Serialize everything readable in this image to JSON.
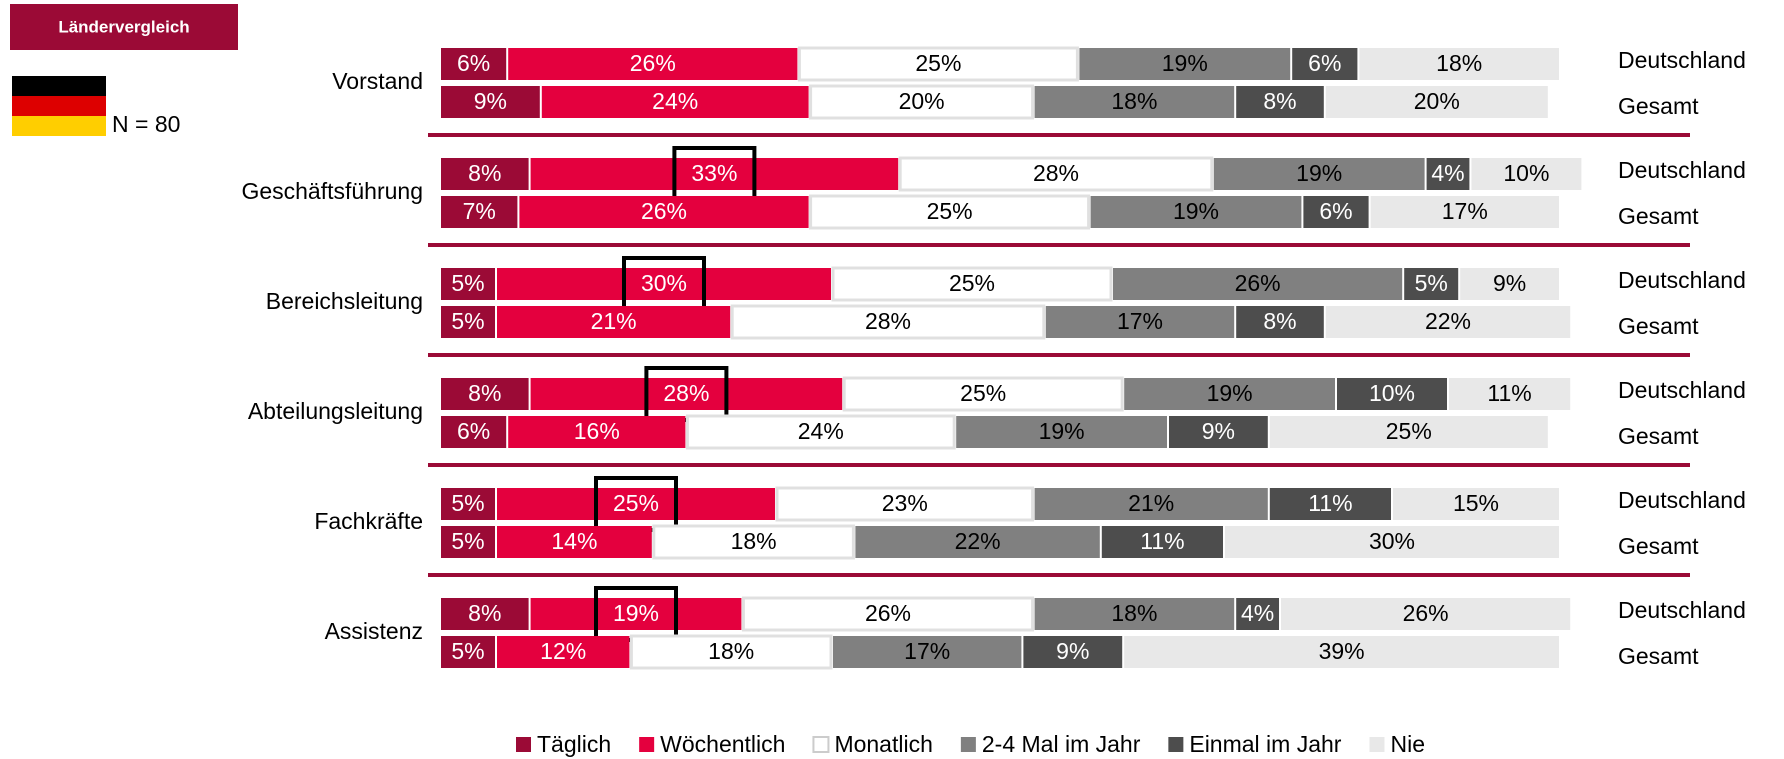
{
  "badge": "Ländervergleich",
  "n_label": "N = 80",
  "chart_data": {
    "type": "stacked-bar",
    "orientation": "horizontal",
    "xlim": [
      0,
      100
    ],
    "series": [
      {
        "name": "Täglich",
        "color": "#9b0a36",
        "label_color": "#ffffff"
      },
      {
        "name": "Wöchentlich",
        "color": "#e4003e",
        "label_color": "#ffffff"
      },
      {
        "name": "Monatlich",
        "color": "#ffffff",
        "label_color": "#000000"
      },
      {
        "name": "2-4 Mal im Jahr",
        "color": "#808080",
        "label_color": "#000000"
      },
      {
        "name": "Einmal im Jahr",
        "color": "#4d4d4d",
        "label_color": "#ffffff"
      },
      {
        "name": "Nie",
        "color": "#e8e8e8",
        "label_color": "#000000"
      }
    ],
    "groups": [
      {
        "name": "Vorstand",
        "rows": [
          {
            "name": "Deutschland",
            "values": [
              6,
              26,
              25,
              19,
              6,
              18
            ],
            "value_labels": [
              "6%",
              "26%",
              "25%",
              "19%",
              "6%",
              "18%"
            ]
          },
          {
            "name": "Gesamt",
            "values": [
              9,
              24,
              20,
              18,
              8,
              20
            ],
            "value_labels": [
              "9%",
              "24%",
              "20%",
              "18%",
              "8%",
              "20%"
            ]
          }
        ]
      },
      {
        "name": "Geschäftsführung",
        "rows": [
          {
            "name": "Deutschland",
            "values": [
              8,
              33,
              28,
              19,
              4,
              10
            ],
            "value_labels": [
              "8%",
              "33%",
              "28%",
              "19%",
              "4%",
              "10%"
            ],
            "highlight": true
          },
          {
            "name": "Gesamt",
            "values": [
              7,
              26,
              25,
              19,
              6,
              17
            ],
            "value_labels": [
              "7%",
              "26%",
              "25%",
              "19%",
              "6%",
              "17%"
            ]
          }
        ]
      },
      {
        "name": "Bereichsleitung",
        "rows": [
          {
            "name": "Deutschland",
            "values": [
              5,
              30,
              25,
              26,
              5,
              9
            ],
            "value_labels": [
              "5%",
              "30%",
              "25%",
              "26%",
              "5%",
              "9%"
            ],
            "highlight": true
          },
          {
            "name": "Gesamt",
            "values": [
              5,
              21,
              28,
              17,
              8,
              22
            ],
            "value_labels": [
              "5%",
              "21%",
              "28%",
              "17%",
              "8%",
              "22%"
            ]
          }
        ]
      },
      {
        "name": "Abteilungsleitung",
        "rows": [
          {
            "name": "Deutschland",
            "values": [
              8,
              28,
              25,
              19,
              10,
              11
            ],
            "value_labels": [
              "8%",
              "28%",
              "25%",
              "19%",
              "10%",
              "11%"
            ],
            "highlight": true
          },
          {
            "name": "Gesamt",
            "values": [
              6,
              16,
              24,
              19,
              9,
              25
            ],
            "value_labels": [
              "6%",
              "16%",
              "24%",
              "19%",
              "9%",
              "25%"
            ]
          }
        ]
      },
      {
        "name": "Fachkräfte",
        "rows": [
          {
            "name": "Deutschland",
            "values": [
              5,
              25,
              23,
              21,
              11,
              15
            ],
            "value_labels": [
              "5%",
              "25%",
              "23%",
              "21%",
              "11%",
              "15%"
            ],
            "highlight": true
          },
          {
            "name": "Gesamt",
            "values": [
              5,
              14,
              18,
              22,
              11,
              30
            ],
            "value_labels": [
              "5%",
              "14%",
              "18%",
              "22%",
              "11%",
              "30%"
            ]
          }
        ]
      },
      {
        "name": "Assistenz",
        "rows": [
          {
            "name": "Deutschland",
            "values": [
              8,
              19,
              26,
              18,
              4,
              26
            ],
            "value_labels": [
              "8%",
              "19%",
              "26%",
              "18%",
              "4%",
              "26%"
            ],
            "highlight": true
          },
          {
            "name": "Gesamt",
            "values": [
              5,
              12,
              18,
              17,
              9,
              39
            ],
            "value_labels": [
              "5%",
              "12%",
              "18%",
              "17%",
              "9%",
              "39%"
            ]
          }
        ]
      }
    ]
  }
}
